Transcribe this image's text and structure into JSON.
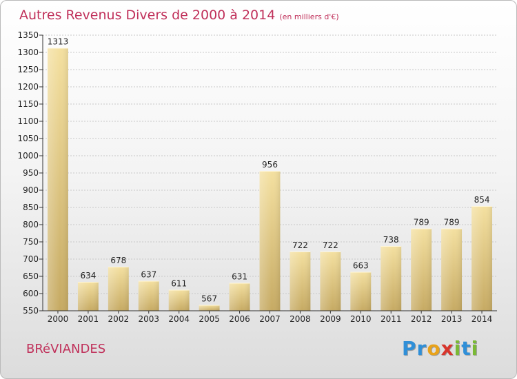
{
  "chart_data": {
    "type": "bar",
    "title": "Autres Revenus Divers de 2000 à 2014",
    "subtitle": "(en milliers d'€)",
    "xlabel": "",
    "ylabel": "",
    "categories": [
      "2000",
      "2001",
      "2002",
      "2003",
      "2004",
      "2005",
      "2006",
      "2007",
      "2008",
      "2009",
      "2010",
      "2011",
      "2012",
      "2013",
      "2014"
    ],
    "values": [
      1313,
      634,
      678,
      637,
      611,
      567,
      631,
      956,
      722,
      722,
      663,
      738,
      789,
      789,
      854
    ],
    "ylim": [
      550,
      1350
    ],
    "yticks": [
      550,
      600,
      650,
      700,
      750,
      800,
      850,
      900,
      950,
      1000,
      1050,
      1100,
      1150,
      1200,
      1250,
      1300,
      1350
    ],
    "grid": true,
    "colors": {
      "bar_light": "#f3de9c",
      "bar_dark": "#c7ac66",
      "title": "#c0305a"
    }
  },
  "commune": "BRéVIANDES",
  "logo": {
    "letters": [
      {
        "ch": "P",
        "color": "#2f8fd8"
      },
      {
        "ch": "r",
        "color": "#2f8fd8"
      },
      {
        "ch": "o",
        "color": "#e8a21a"
      },
      {
        "ch": "x",
        "color": "#d8352c"
      },
      {
        "ch": "i",
        "color": "#7ab934"
      },
      {
        "ch": "t",
        "color": "#2f8fd8"
      },
      {
        "ch": "i",
        "color": "#7ab934"
      }
    ]
  }
}
